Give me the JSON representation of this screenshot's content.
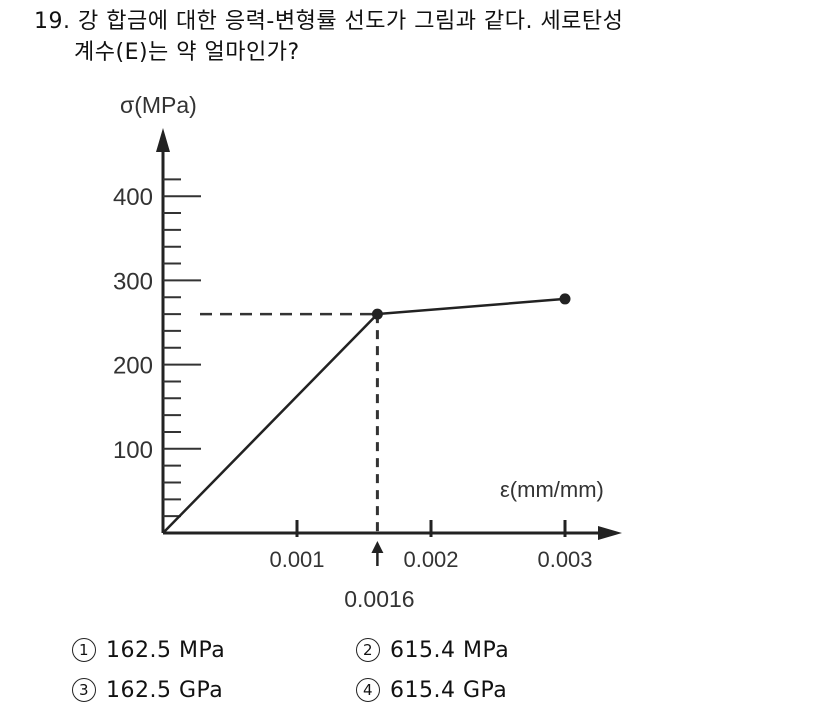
{
  "question": {
    "number": "19.",
    "line1": "강 합금에 대한 응력-변형률 선도가 그림과 같다. 세로탄성",
    "line2": "계수(E)는 약 얼마인가?"
  },
  "chart_data": {
    "type": "line",
    "ylabel": "σ(MPa)",
    "xlabel": "ε(mm/mm)",
    "xlim": [
      0,
      0.0035
    ],
    "ylim": [
      0,
      450
    ],
    "y_ticks": [
      100,
      200,
      300,
      400
    ],
    "x_ticks": [
      0.001,
      0.002,
      0.003
    ],
    "x_tick_labels": [
      "0.001",
      "0.002",
      "0.003"
    ],
    "y_tick_labels": [
      "100",
      "200",
      "300",
      "400"
    ],
    "series": [
      {
        "x": [
          0,
          0.0016,
          0.003
        ],
        "y": [
          0,
          260,
          278
        ]
      }
    ],
    "marked_points": [
      {
        "x": 0.0016,
        "y": 260
      },
      {
        "x": 0.003,
        "y": 278
      }
    ],
    "annotation": {
      "x": 0.0016,
      "label": "0.0016"
    },
    "grid": false
  },
  "choices": [
    {
      "num": "1",
      "text": "162.5 MPa"
    },
    {
      "num": "2",
      "text": "615.4 MPa"
    },
    {
      "num": "3",
      "text": "162.5 GPa"
    },
    {
      "num": "4",
      "text": "615.4 GPa"
    }
  ]
}
